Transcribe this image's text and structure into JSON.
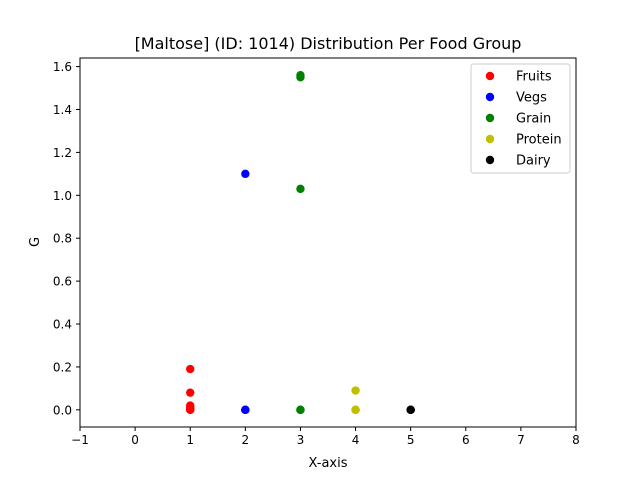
{
  "chart_data": {
    "type": "scatter",
    "title": "[Maltose] (ID: 1014) Distribution Per Food Group",
    "xlabel": "X-axis",
    "ylabel": "G",
    "xlim": [
      -1,
      8
    ],
    "ylim": [
      -0.08,
      1.64
    ],
    "xticks": [
      -1,
      0,
      1,
      2,
      3,
      4,
      5,
      6,
      7,
      8
    ],
    "xtick_labels": [
      "−1",
      "0",
      "1",
      "2",
      "3",
      "4",
      "5",
      "6",
      "7",
      "8"
    ],
    "yticks": [
      0.0,
      0.2,
      0.4,
      0.6,
      0.8,
      1.0,
      1.2,
      1.4,
      1.6
    ],
    "ytick_labels": [
      "0.0",
      "0.2",
      "0.4",
      "0.6",
      "0.8",
      "1.0",
      "1.2",
      "1.4",
      "1.6"
    ],
    "grid": false,
    "legend_position": "top-right",
    "series": [
      {
        "name": "Fruits",
        "color": "#ff0000",
        "points": [
          [
            1,
            0.19
          ],
          [
            1,
            0.08
          ],
          [
            1,
            0.02
          ],
          [
            1,
            0.01
          ],
          [
            1,
            0.005
          ],
          [
            1,
            0.0
          ],
          [
            1,
            0.0
          ]
        ]
      },
      {
        "name": "Vegs",
        "color": "#0000ff",
        "points": [
          [
            2,
            1.1
          ],
          [
            2,
            0.0
          ],
          [
            2,
            0.0
          ],
          [
            2,
            0.0
          ]
        ]
      },
      {
        "name": "Grain",
        "color": "#008000",
        "points": [
          [
            3,
            1.56
          ],
          [
            3,
            1.55
          ],
          [
            3,
            1.03
          ],
          [
            3,
            0.0
          ],
          [
            3,
            0.0
          ],
          [
            3,
            0.0
          ]
        ]
      },
      {
        "name": "Protein",
        "color": "#bfbf00",
        "points": [
          [
            4,
            0.09
          ],
          [
            4,
            0.0
          ],
          [
            4,
            0.0
          ],
          [
            4,
            0.0
          ]
        ]
      },
      {
        "name": "Dairy",
        "color": "#000000",
        "points": [
          [
            5,
            0.0
          ],
          [
            5,
            0.0
          ],
          [
            5,
            0.0
          ]
        ]
      }
    ]
  }
}
